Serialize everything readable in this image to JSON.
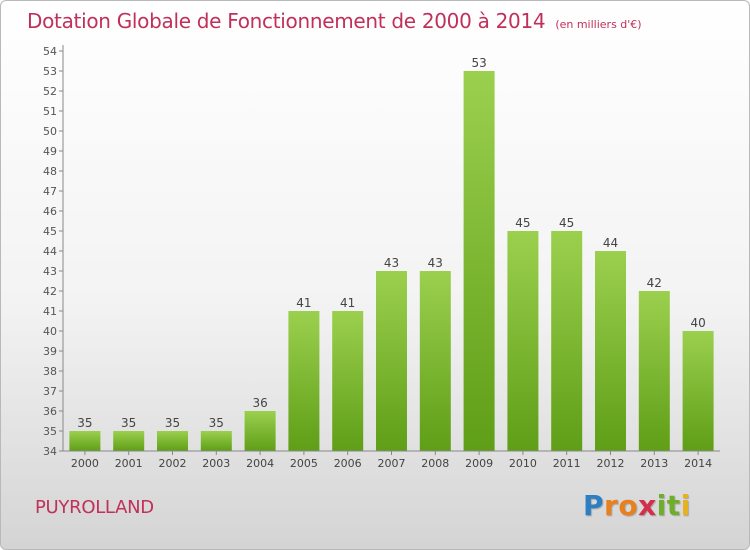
{
  "chart_data": {
    "type": "bar",
    "title": "Dotation Globale de Fonctionnement de 2000 à 2014",
    "subtitle": "(en milliers d'€)",
    "categories": [
      "2000",
      "2001",
      "2002",
      "2003",
      "2004",
      "2005",
      "2006",
      "2007",
      "2008",
      "2009",
      "2010",
      "2011",
      "2012",
      "2013",
      "2014"
    ],
    "values": [
      35,
      35,
      35,
      35,
      36,
      41,
      41,
      43,
      43,
      53,
      45,
      45,
      44,
      42,
      40
    ],
    "ylim": [
      34,
      54
    ],
    "yticks": [
      34,
      35,
      36,
      37,
      38,
      39,
      40,
      41,
      42,
      43,
      44,
      45,
      46,
      47,
      48,
      49,
      50,
      51,
      52,
      53,
      54
    ],
    "grid": false,
    "bar_color": "#7cc232"
  },
  "commune": "PUYROLLAND",
  "logo": {
    "letters": [
      "P",
      "r",
      "o",
      "x",
      "i",
      "t",
      "i"
    ],
    "colors": [
      "#2d7fc1",
      "#e8801e",
      "#e8801e",
      "#d32f4a",
      "#6fae2a",
      "#6fae2a",
      "#e8b21e"
    ]
  },
  "colors": {
    "title": "#c0305a",
    "axis": "#555555"
  }
}
